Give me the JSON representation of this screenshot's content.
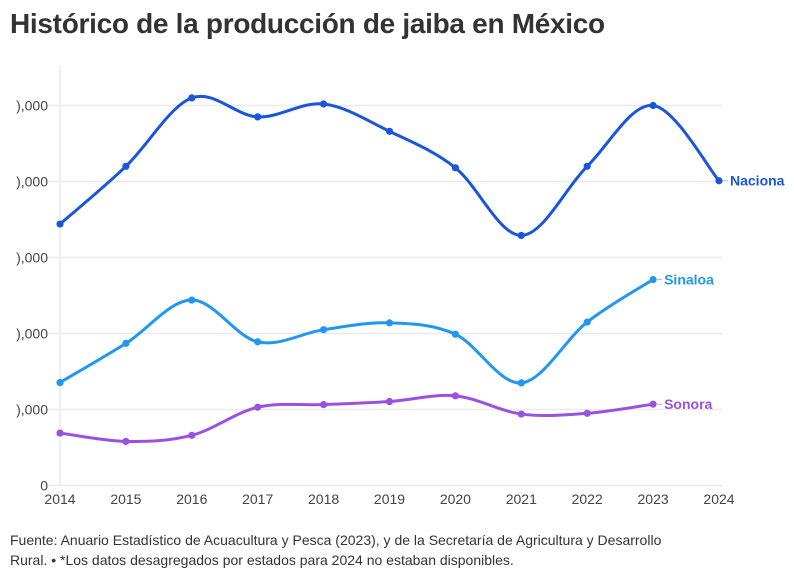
{
  "title": "Histórico de la producción de jaiba en México",
  "footer": {
    "source": "Fuente: Anuario Estadístico de Acuacultura y Pesca (2023), y de la Secretaría de Agricultura y Desarrollo Rural. • *Los datos desagregados por estados para 2024 no estaban disponibles."
  },
  "chart_data": {
    "type": "line",
    "title": "Histórico de la producción de jaiba en México",
    "xlabel": "",
    "ylabel": "",
    "x": [
      2014,
      2015,
      2016,
      2017,
      2018,
      2019,
      2020,
      2021,
      2022,
      2023,
      2024
    ],
    "x_tick_labels": [
      "2014",
      "2015",
      "2016",
      "2017",
      "2018",
      "2019",
      "2020",
      "2021",
      "2022",
      "2023",
      "2024"
    ],
    "y_ticks": [
      0,
      10000,
      20000,
      30000,
      40000,
      50000
    ],
    "y_tick_labels": [
      "0",
      "),000",
      "),000",
      "),000",
      "),000",
      "),000"
    ],
    "ylim": [
      0,
      55500
    ],
    "grid": true,
    "legend": "inline-end-labels",
    "series": [
      {
        "name": "Nacional",
        "label": "Naciona",
        "color": "#1a56db",
        "values": [
          34400,
          42000,
          51000,
          48500,
          50200,
          46600,
          41800,
          32900,
          42000,
          50000,
          40100
        ]
      },
      {
        "name": "Sinaloa",
        "label": "Sinaloa",
        "color": "#2196f3",
        "values": [
          13550,
          18700,
          24400,
          18900,
          20500,
          21400,
          19900,
          13500,
          21500,
          27100,
          null
        ]
      },
      {
        "name": "Sonora",
        "label": "Sonora",
        "color": "#9b51e0",
        "values": [
          6900,
          5800,
          6600,
          10300,
          10650,
          11050,
          11800,
          9400,
          9500,
          10700,
          null
        ]
      }
    ]
  }
}
